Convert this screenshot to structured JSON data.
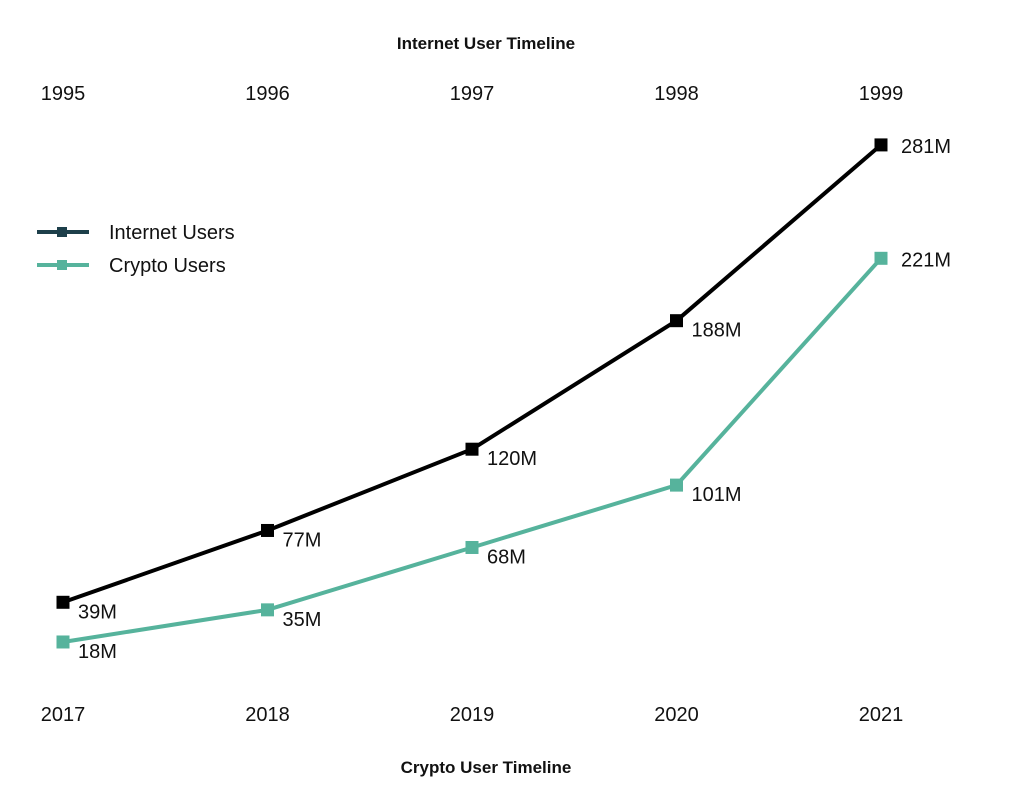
{
  "chart_data": {
    "type": "line",
    "top_title": "Internet User Timeline",
    "bottom_title": "Crypto User Timeline",
    "top_categories": [
      "1995",
      "1996",
      "1997",
      "1998",
      "1999"
    ],
    "bottom_categories": [
      "2017",
      "2018",
      "2019",
      "2020",
      "2021"
    ],
    "ylim": [
      0,
      300
    ],
    "grid": false,
    "legend_position": "left",
    "series": [
      {
        "name": "Internet Users",
        "color": "#000000",
        "legend_color": "#1d3f4a",
        "axis": "top",
        "values": [
          39,
          77,
          120,
          188,
          281
        ],
        "labels": [
          "39M",
          "77M",
          "120M",
          "188M",
          "281M"
        ]
      },
      {
        "name": "Crypto Users",
        "color": "#56b39c",
        "legend_color": "#56b39c",
        "axis": "bottom",
        "values": [
          18,
          35,
          68,
          101,
          221
        ],
        "labels": [
          "18M",
          "35M",
          "68M",
          "101M",
          "221M"
        ]
      }
    ]
  }
}
